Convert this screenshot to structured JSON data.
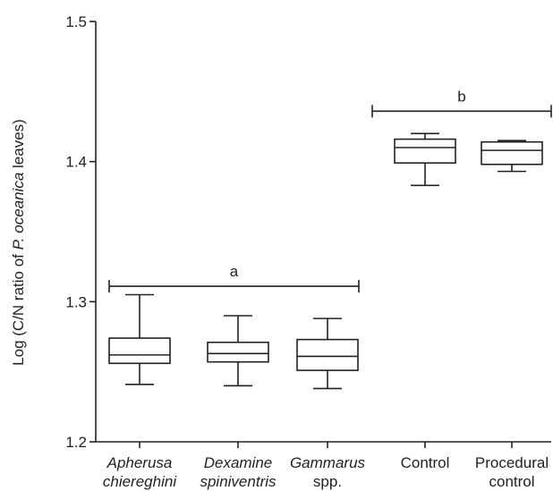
{
  "chart_data": {
    "type": "box",
    "title": "",
    "xlabel": "",
    "ylabel": {
      "parts": [
        {
          "text": "Log (C/N ratio of ",
          "italic": false
        },
        {
          "text": "P. oceanica",
          "italic": true
        },
        {
          "text": " leaves)",
          "italic": false
        }
      ]
    },
    "ylim": [
      1.2,
      1.5
    ],
    "yticks": [
      1.2,
      1.3,
      1.4,
      1.5
    ],
    "ytick_labels": [
      "1.2",
      "1.3",
      "1.4",
      "1.5"
    ],
    "grid": false,
    "categories": [
      {
        "lines": [
          "Apherusa",
          "chiereghini"
        ],
        "italic": true
      },
      {
        "lines": [
          "Dexamine",
          "spiniventris"
        ],
        "italic": true
      },
      {
        "lines": [
          "Gammarus",
          "spp."
        ],
        "italic": [
          true,
          false
        ]
      },
      {
        "lines": [
          "Control"
        ],
        "italic": false
      },
      {
        "lines": [
          "Procedural",
          "control"
        ],
        "italic": false
      }
    ],
    "boxes": [
      {
        "min": 1.241,
        "q1": 1.256,
        "median": 1.262,
        "q3": 1.274,
        "max": 1.305
      },
      {
        "min": 1.24,
        "q1": 1.257,
        "median": 1.263,
        "q3": 1.271,
        "max": 1.29
      },
      {
        "min": 1.238,
        "q1": 1.251,
        "median": 1.261,
        "q3": 1.273,
        "max": 1.288
      },
      {
        "min": 1.383,
        "q1": 1.399,
        "median": 1.41,
        "q3": 1.416,
        "max": 1.42
      },
      {
        "min": 1.393,
        "q1": 1.398,
        "median": 1.408,
        "q3": 1.414,
        "max": 1.415
      }
    ],
    "groups": [
      {
        "label": "a",
        "from": 0,
        "to": 2,
        "y": 1.311
      },
      {
        "label": "b",
        "from": 3,
        "to": 4,
        "y": 1.436
      }
    ]
  }
}
